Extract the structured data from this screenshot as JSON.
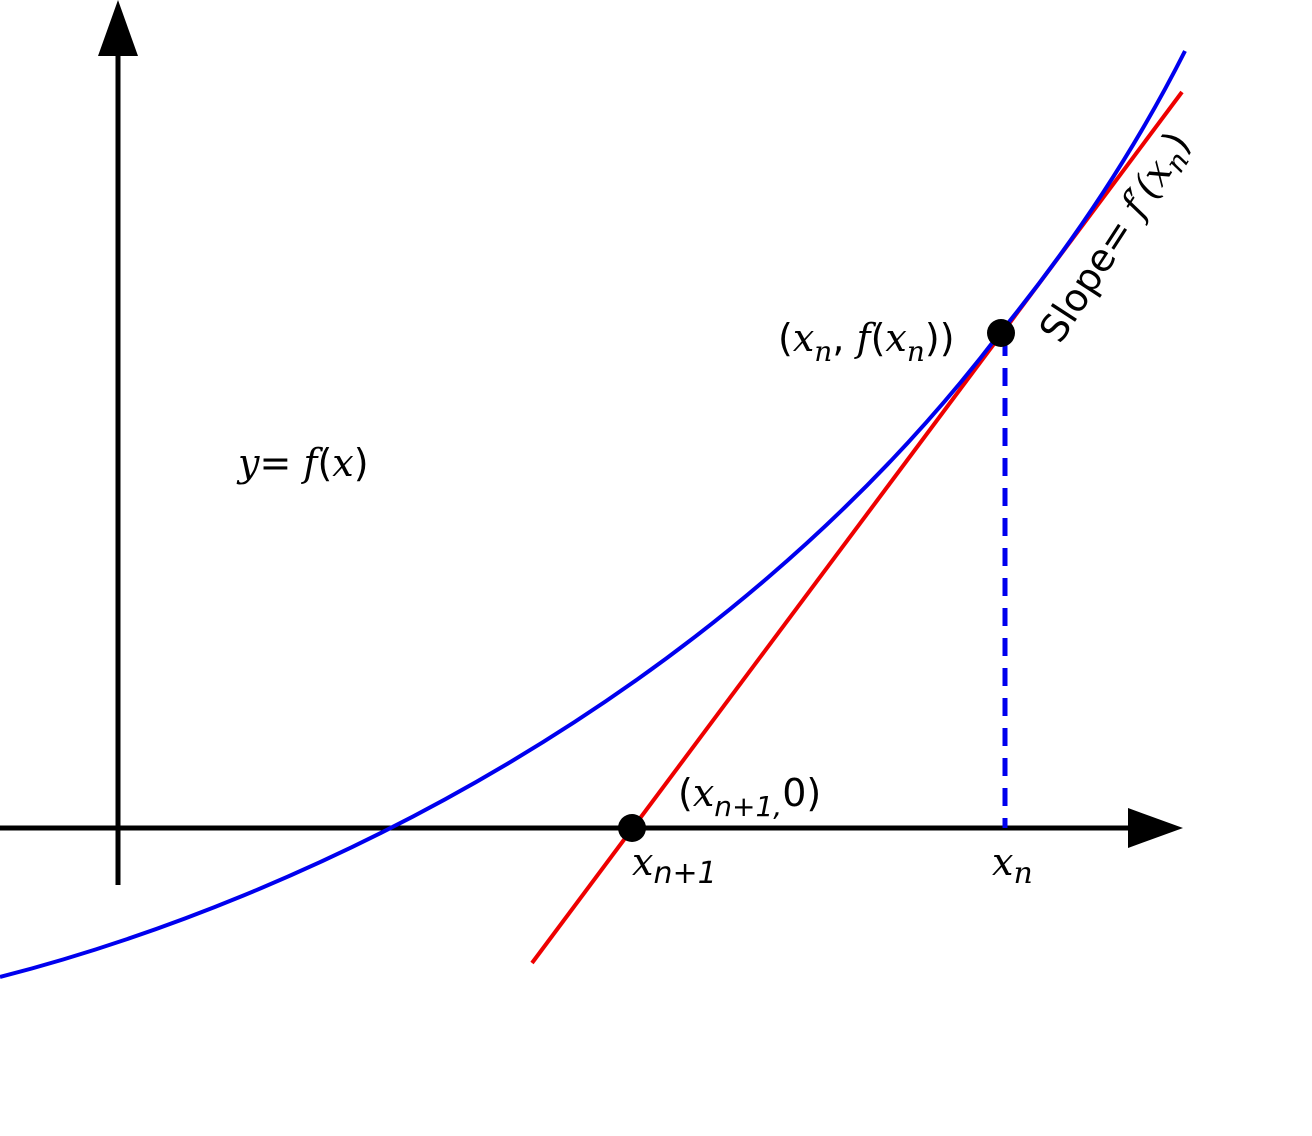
{
  "labels": {
    "curve_y": "y",
    "curve_eq": "= ",
    "curve_f": "f",
    "curve_lparen": "(",
    "curve_x": "x",
    "curve_rparen": ")",
    "point_open": "(",
    "point_x": "x",
    "point_sub_n": "n",
    "point_comma": ", ",
    "point_f": "f",
    "point_lparen2": "(",
    "point_x2": "x",
    "point_sub_n2": "n",
    "point_close": "))",
    "root_open": "(",
    "root_x": "x",
    "root_sub": "n+1,",
    "root_zero": "0)",
    "tick_xn1_x": "x",
    "tick_xn1_sub": "n+1",
    "tick_xn_x": "x",
    "tick_xn_sub": "n",
    "slope_word": "Slope",
    "slope_eq": "= ",
    "slope_fprime": "f′(",
    "slope_x": "x",
    "slope_sub": "n",
    "slope_close": ")"
  },
  "colors": {
    "curve": "#0000ee",
    "tangent": "#ee0000",
    "axes": "#000000",
    "dropline": "#0000ee",
    "points": "#000000"
  }
}
